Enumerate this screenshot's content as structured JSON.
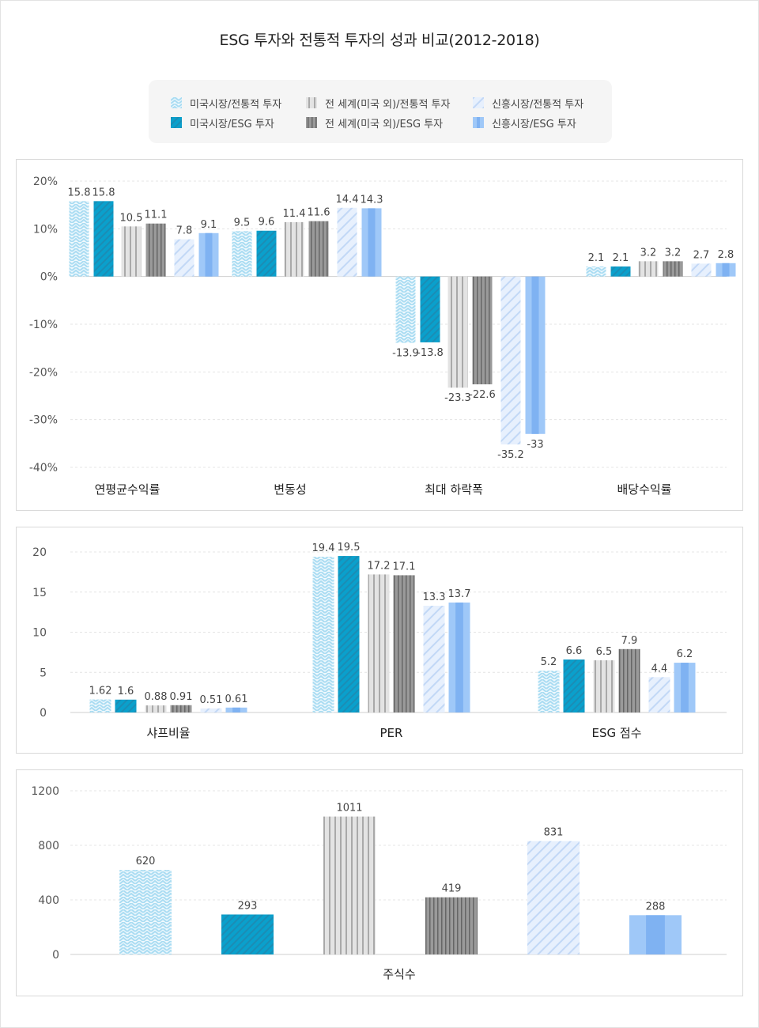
{
  "title": "ESG 투자와 전통적 투자의 성과 비교(2012-2018)",
  "colors": {
    "us_trad": "#a9dcf2",
    "us_esg": "#0aa0cc",
    "world_trad": "#cfcfcf",
    "world_esg": "#8f8f8f",
    "em_trad": "#d7e6fb",
    "em_esg": "#8bbcf6"
  },
  "legend": [
    {
      "key": "us_trad",
      "label": "미국시장/전통적 투자",
      "pattern": "wave"
    },
    {
      "key": "world_trad",
      "label": "전 세계(미국 외)/전통적 투자",
      "pattern": "vstripe"
    },
    {
      "key": "em_trad",
      "label": "신흥시장/전통적 투자",
      "pattern": "diag"
    },
    {
      "key": "us_esg",
      "label": "미국시장/ESG 투자",
      "pattern": "hatch"
    },
    {
      "key": "world_esg",
      "label": "전 세계(미국 외)/ESG 투자",
      "pattern": "vstripe-dark"
    },
    {
      "key": "em_esg",
      "label": "신흥시장/ESG 투자",
      "pattern": "band"
    }
  ],
  "chart_data": [
    {
      "type": "bar",
      "categories": [
        "연평균수익률",
        "변동성",
        "최대 하락폭",
        "배당수익률"
      ],
      "series": [
        {
          "key": "us_trad",
          "name": "미국시장/전통적 투자",
          "values": [
            15.8,
            9.5,
            -13.9,
            2.1
          ],
          "labels": [
            "15.8",
            "9.5",
            "-13.9",
            "2.1"
          ]
        },
        {
          "key": "us_esg",
          "name": "미국시장/ESG 투자",
          "values": [
            15.8,
            9.6,
            -13.8,
            2.1
          ],
          "labels": [
            "15.8",
            "9.6",
            "-13.8",
            "2.1"
          ]
        },
        {
          "key": "world_trad",
          "name": "전 세계(미국 외)/전통적 투자",
          "values": [
            10.5,
            11.4,
            -23.3,
            3.2
          ],
          "labels": [
            "10.5",
            "11.4",
            "-23.3",
            "3.2"
          ]
        },
        {
          "key": "world_esg",
          "name": "전 세계(미국 외)/ESG 투자",
          "values": [
            11.1,
            11.6,
            -22.6,
            3.2
          ],
          "labels": [
            "11.1",
            "11.6",
            "-22.6",
            "3.2"
          ]
        },
        {
          "key": "em_trad",
          "name": "신흥시장/전통적 투자",
          "values": [
            7.8,
            14.4,
            -35.2,
            2.7
          ],
          "labels": [
            "7.8",
            "14.4",
            "-35.2",
            "2.7"
          ]
        },
        {
          "key": "em_esg",
          "name": "신흥시장/ESG 투자",
          "values": [
            9.1,
            14.3,
            -33,
            2.8
          ],
          "labels": [
            "9.1",
            "14.3",
            "-33",
            "2.8"
          ]
        }
      ],
      "ylim": [
        -40,
        20
      ],
      "yticks": [
        20,
        10,
        0,
        -10,
        -20,
        -30,
        -40
      ],
      "ytick_labels": [
        "20%",
        "10%",
        "0%",
        "-10%",
        "-20%",
        "-30%",
        "-40%"
      ],
      "grid": true
    },
    {
      "type": "bar",
      "categories": [
        "샤프비율",
        "PER",
        "ESG 점수"
      ],
      "series": [
        {
          "key": "us_trad",
          "name": "미국시장/전통적 투자",
          "values": [
            1.62,
            19.4,
            5.2
          ],
          "labels": [
            "1.62",
            "19.4",
            "5.2"
          ]
        },
        {
          "key": "us_esg",
          "name": "미국시장/ESG 투자",
          "values": [
            1.6,
            19.5,
            6.6
          ],
          "labels": [
            "1.6",
            "19.5",
            "6.6"
          ]
        },
        {
          "key": "world_trad",
          "name": "전 세계(미국 외)/전통적 투자",
          "values": [
            0.88,
            17.2,
            6.5
          ],
          "labels": [
            "0.88",
            "17.2",
            "6.5"
          ]
        },
        {
          "key": "world_esg",
          "name": "전 세계(미국 외)/ESG 투자",
          "values": [
            0.91,
            17.1,
            7.9
          ],
          "labels": [
            "0.91",
            "17.1",
            "7.9"
          ]
        },
        {
          "key": "em_trad",
          "name": "신흥시장/전통적 투자",
          "values": [
            0.51,
            13.3,
            4.4
          ],
          "labels": [
            "0.51",
            "13.3",
            "4.4"
          ]
        },
        {
          "key": "em_esg",
          "name": "신흥시장/ESG 투자",
          "values": [
            0.61,
            13.7,
            6.2
          ],
          "labels": [
            "0.61",
            "13.7",
            "6.2"
          ]
        }
      ],
      "ylim": [
        0,
        20
      ],
      "yticks": [
        20,
        15,
        10,
        5,
        0
      ],
      "ytick_labels": [
        "20",
        "15",
        "10",
        "5",
        "0"
      ],
      "grid": true
    },
    {
      "type": "bar",
      "categories": [
        "주식수"
      ],
      "series": [
        {
          "key": "us_trad",
          "name": "미국시장/전통적 투자",
          "values": [
            620
          ],
          "labels": [
            "620"
          ]
        },
        {
          "key": "us_esg",
          "name": "미국시장/ESG 투자",
          "values": [
            293
          ],
          "labels": [
            "293"
          ]
        },
        {
          "key": "world_trad",
          "name": "전 세계(미국 외)/전통적 투자",
          "values": [
            1011
          ],
          "labels": [
            "1011"
          ]
        },
        {
          "key": "world_esg",
          "name": "전 세계(미국 외)/ESG 투자",
          "values": [
            419
          ],
          "labels": [
            "419"
          ]
        },
        {
          "key": "em_trad",
          "name": "신흥시장/전통적 투자",
          "values": [
            831
          ],
          "labels": [
            "831"
          ]
        },
        {
          "key": "em_esg",
          "name": "신흥시장/ESG 투자",
          "values": [
            288
          ],
          "labels": [
            "288"
          ]
        }
      ],
      "ylim": [
        0,
        1200
      ],
      "yticks": [
        1200,
        800,
        400,
        0
      ],
      "ytick_labels": [
        "1200",
        "800",
        "400",
        "0"
      ],
      "grid": true
    }
  ]
}
